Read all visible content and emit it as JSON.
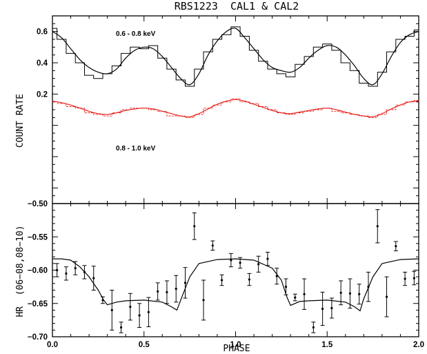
{
  "chart_data": [
    {
      "type": "line",
      "title": "RBS1223  CAL1 & CAL2",
      "ylabel": "COUNT RATE",
      "xlim": [
        0,
        2
      ],
      "ylim": [
        -0.5,
        0.7
      ],
      "xticks": [
        0.0,
        0.5,
        1.0,
        1.5,
        2.0
      ],
      "yticks": [
        0.6,
        0.4,
        0.2,
        -0.5
      ],
      "yticklabels": [
        "0.6",
        "0.4",
        "0.2",
        "−0.50"
      ],
      "grid": false,
      "series": [
        {
          "name": "0.6 - 0.8 keV",
          "color": "#000000",
          "x": [
            0.0,
            0.05,
            0.1,
            0.15,
            0.2,
            0.25,
            0.3,
            0.35,
            0.4,
            0.45,
            0.5,
            0.55,
            0.6,
            0.65,
            0.7,
            0.75,
            0.8,
            0.85,
            0.9,
            0.95,
            1.0,
            1.05,
            1.1,
            1.15,
            1.2,
            1.25,
            1.3,
            1.35,
            1.4,
            1.45,
            1.5,
            1.55,
            1.6,
            1.65,
            1.7,
            1.75,
            1.8,
            1.85,
            1.9,
            1.95,
            2.0
          ],
          "model": [
            0.6,
            0.56,
            0.49,
            0.42,
            0.37,
            0.34,
            0.33,
            0.36,
            0.43,
            0.48,
            0.5,
            0.49,
            0.44,
            0.37,
            0.3,
            0.26,
            0.33,
            0.45,
            0.54,
            0.6,
            0.62,
            0.56,
            0.49,
            0.42,
            0.37,
            0.35,
            0.34,
            0.37,
            0.43,
            0.48,
            0.51,
            0.5,
            0.45,
            0.38,
            0.3,
            0.26,
            0.33,
            0.44,
            0.53,
            0.58,
            0.6
          ],
          "data": [
            0.62,
            0.55,
            0.46,
            0.4,
            0.32,
            0.3,
            0.33,
            0.38,
            0.46,
            0.5,
            0.49,
            0.51,
            0.43,
            0.36,
            0.29,
            0.25,
            0.36,
            0.47,
            0.55,
            0.58,
            0.63,
            0.57,
            0.48,
            0.41,
            0.36,
            0.33,
            0.31,
            0.39,
            0.44,
            0.5,
            0.52,
            0.48,
            0.4,
            0.35,
            0.27,
            0.25,
            0.34,
            0.47,
            0.55,
            0.57,
            0.61
          ]
        },
        {
          "name": "0.8 - 1.0 keV",
          "color": "#e8231f",
          "x": [
            0.0,
            0.05,
            0.1,
            0.15,
            0.2,
            0.25,
            0.3,
            0.35,
            0.4,
            0.45,
            0.5,
            0.55,
            0.6,
            0.65,
            0.7,
            0.75,
            0.8,
            0.85,
            0.9,
            0.95,
            1.0,
            1.05,
            1.1,
            1.15,
            1.2,
            1.25,
            1.3,
            1.35,
            1.4,
            1.45,
            1.5,
            1.55,
            1.6,
            1.65,
            1.7,
            1.75,
            1.8,
            1.85,
            1.9,
            1.95,
            2.0
          ],
          "model": [
            0.155,
            0.145,
            0.13,
            0.11,
            0.09,
            0.075,
            0.07,
            0.08,
            0.095,
            0.105,
            0.11,
            0.105,
            0.09,
            0.075,
            0.06,
            0.055,
            0.075,
            0.105,
            0.135,
            0.155,
            0.165,
            0.155,
            0.135,
            0.115,
            0.095,
            0.08,
            0.075,
            0.085,
            0.095,
            0.105,
            0.11,
            0.1,
            0.085,
            0.07,
            0.06,
            0.055,
            0.075,
            0.105,
            0.13,
            0.15,
            0.155
          ],
          "data": [
            0.15,
            0.14,
            0.12,
            0.11,
            0.08,
            0.07,
            0.06,
            0.08,
            0.1,
            0.11,
            0.11,
            0.1,
            0.09,
            0.06,
            0.06,
            0.05,
            0.07,
            0.11,
            0.13,
            0.15,
            0.17,
            0.15,
            0.14,
            0.12,
            0.1,
            0.08,
            0.07,
            0.08,
            0.09,
            0.1,
            0.11,
            0.09,
            0.08,
            0.07,
            0.06,
            0.05,
            0.07,
            0.1,
            0.13,
            0.15,
            0.16
          ]
        }
      ]
    },
    {
      "type": "scatter",
      "xlabel": "PHASE",
      "ylabel": "HR  (06−08,08−10)",
      "xlim": [
        0,
        2
      ],
      "ylim": [
        -0.7,
        -0.5
      ],
      "xticks": [
        0.0,
        0.5,
        1.0,
        1.5,
        2.0
      ],
      "xticklabels": [
        "0.0",
        "0.5",
        "1.0",
        "1.5",
        "2.0"
      ],
      "yticks": [
        -0.55,
        -0.6,
        -0.65,
        -0.7
      ],
      "yticklabels": [
        "−0.55",
        "−0.60",
        "−0.65",
        "−0.70"
      ],
      "grid": false,
      "model": {
        "x": [
          0.0,
          0.05,
          0.1,
          0.15,
          0.2,
          0.25,
          0.28,
          0.3,
          0.35,
          0.4,
          0.5,
          0.6,
          0.65,
          0.68,
          0.7,
          0.75,
          0.8,
          0.9,
          1.0,
          1.1,
          1.2,
          1.25,
          1.28,
          1.3,
          1.35,
          1.4,
          1.5,
          1.6,
          1.65,
          1.68,
          1.7,
          1.75,
          1.8,
          1.9,
          2.0
        ],
        "y": [
          -0.583,
          -0.583,
          -0.585,
          -0.595,
          -0.61,
          -0.63,
          -0.645,
          -0.652,
          -0.648,
          -0.646,
          -0.645,
          -0.648,
          -0.655,
          -0.66,
          -0.645,
          -0.61,
          -0.59,
          -0.584,
          -0.583,
          -0.585,
          -0.597,
          -0.615,
          -0.64,
          -0.653,
          -0.647,
          -0.646,
          -0.645,
          -0.648,
          -0.655,
          -0.661,
          -0.643,
          -0.61,
          -0.59,
          -0.584,
          -0.583
        ]
      },
      "points": [
        {
          "x": 0.025,
          "y": -0.6,
          "err": 0.01
        },
        {
          "x": 0.075,
          "y": -0.605,
          "err": 0.01
        },
        {
          "x": 0.125,
          "y": -0.597,
          "err": 0.01
        },
        {
          "x": 0.175,
          "y": -0.603,
          "err": 0.01
        },
        {
          "x": 0.225,
          "y": -0.612,
          "err": 0.018
        },
        {
          "x": 0.275,
          "y": -0.645,
          "err": 0.005
        },
        {
          "x": 0.325,
          "y": -0.66,
          "err": 0.03
        },
        {
          "x": 0.375,
          "y": -0.686,
          "err": 0.008
        },
        {
          "x": 0.425,
          "y": -0.655,
          "err": 0.02
        },
        {
          "x": 0.475,
          "y": -0.668,
          "err": 0.018
        },
        {
          "x": 0.525,
          "y": -0.663,
          "err": 0.022
        },
        {
          "x": 0.575,
          "y": -0.632,
          "err": 0.013
        },
        {
          "x": 0.625,
          "y": -0.633,
          "err": 0.017
        },
        {
          "x": 0.675,
          "y": -0.628,
          "err": 0.02
        },
        {
          "x": 0.725,
          "y": -0.619,
          "err": 0.023
        },
        {
          "x": 0.775,
          "y": -0.534,
          "err": 0.02
        },
        {
          "x": 0.825,
          "y": -0.645,
          "err": 0.03
        },
        {
          "x": 0.875,
          "y": -0.563,
          "err": 0.007
        },
        {
          "x": 0.925,
          "y": -0.615,
          "err": 0.008
        },
        {
          "x": 0.975,
          "y": -0.585,
          "err": 0.01
        },
        {
          "x": 1.025,
          "y": -0.589,
          "err": 0.008
        },
        {
          "x": 1.075,
          "y": -0.614,
          "err": 0.009
        },
        {
          "x": 1.125,
          "y": -0.591,
          "err": 0.012
        },
        {
          "x": 1.175,
          "y": -0.583,
          "err": 0.01
        },
        {
          "x": 1.225,
          "y": -0.609,
          "err": 0.012
        },
        {
          "x": 1.275,
          "y": -0.625,
          "err": 0.012
        },
        {
          "x": 1.325,
          "y": -0.641,
          "err": 0.005
        },
        {
          "x": 1.375,
          "y": -0.636,
          "err": 0.023
        },
        {
          "x": 1.425,
          "y": -0.686,
          "err": 0.008
        },
        {
          "x": 1.475,
          "y": -0.658,
          "err": 0.025
        },
        {
          "x": 1.525,
          "y": -0.657,
          "err": 0.015
        },
        {
          "x": 1.575,
          "y": -0.634,
          "err": 0.018
        },
        {
          "x": 1.625,
          "y": -0.635,
          "err": 0.022
        },
        {
          "x": 1.675,
          "y": -0.636,
          "err": 0.015
        },
        {
          "x": 1.725,
          "y": -0.625,
          "err": 0.022
        },
        {
          "x": 1.775,
          "y": -0.534,
          "err": 0.025
        },
        {
          "x": 1.825,
          "y": -0.64,
          "err": 0.03
        },
        {
          "x": 1.875,
          "y": -0.564,
          "err": 0.007
        },
        {
          "x": 1.925,
          "y": -0.613,
          "err": 0.01
        },
        {
          "x": 1.975,
          "y": -0.612,
          "err": 0.01
        }
      ]
    }
  ]
}
